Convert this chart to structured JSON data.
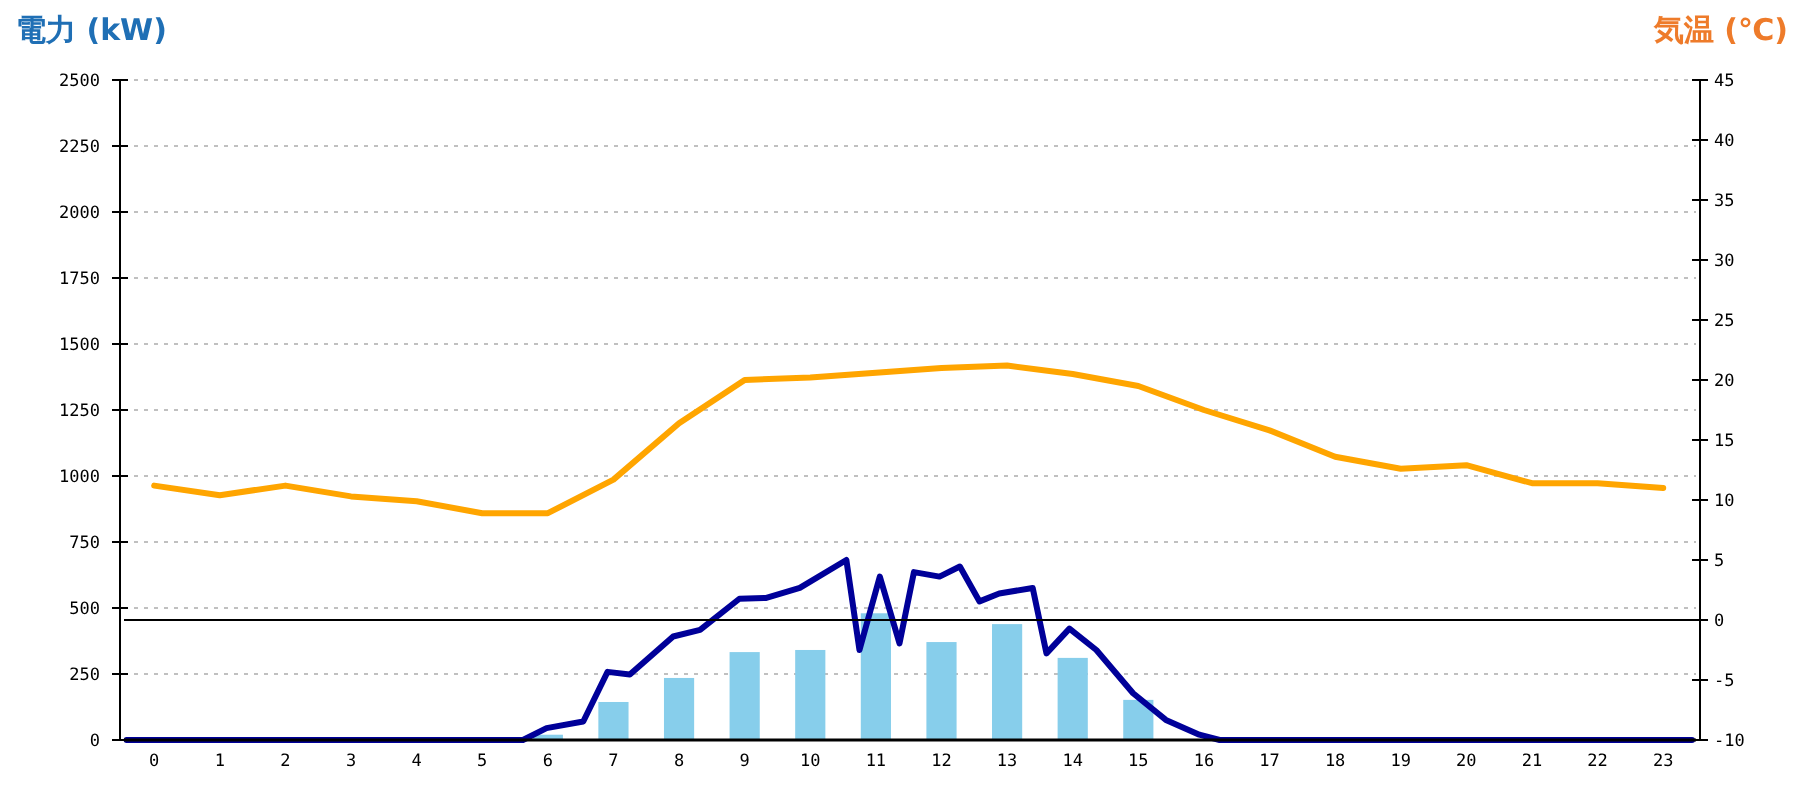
{
  "chart_data": {
    "type": "bar",
    "ylabel": "電力 (kW)",
    "y2label": "気温 (℃)",
    "x": [
      0,
      1,
      2,
      3,
      4,
      5,
      6,
      7,
      8,
      9,
      10,
      11,
      12,
      13,
      14,
      15,
      16,
      17,
      18,
      19,
      20,
      21,
      22,
      23
    ],
    "xlim": [
      -0.46,
      23.5
    ],
    "xticks": [
      0,
      1,
      2,
      3,
      4,
      5,
      6,
      7,
      8,
      9,
      10,
      11,
      12,
      13,
      14,
      15,
      16,
      17,
      18,
      19,
      20,
      21,
      22,
      23
    ],
    "ylim": [
      0,
      2500
    ],
    "yticks": [
      0,
      250,
      500,
      750,
      1000,
      1250,
      1500,
      1750,
      2000,
      2250,
      2500
    ],
    "y2lim": [
      -10,
      45
    ],
    "y2ticks": [
      -10,
      -5,
      0,
      5,
      10,
      15,
      20,
      25,
      30,
      35,
      40,
      45
    ],
    "grid": "y",
    "ref_lines": [
      {
        "axis": "y2",
        "value": 0,
        "color": "#000000"
      }
    ],
    "series": [
      {
        "type": "bar",
        "color": "#87ceeb",
        "values": [
          0,
          0,
          0,
          0,
          0,
          0,
          20,
          144,
          235,
          333,
          341,
          480,
          371,
          439,
          311,
          152,
          null,
          0,
          0,
          0,
          0,
          0,
          0,
          0
        ]
      },
      {
        "type": "line",
        "color": "#000099",
        "x": [
          -0.42,
          5.62,
          5.98,
          6.54,
          6.91,
          7.25,
          7.91,
          8.32,
          8.92,
          9.33,
          9.84,
          10.55,
          10.75,
          11.06,
          11.36,
          11.58,
          11.97,
          12.28,
          12.58,
          12.88,
          13.39,
          13.6,
          13.95,
          14.36,
          14.92,
          15.42,
          15.93,
          16.24,
          23.44
        ],
        "values": [
          0,
          0,
          45,
          70,
          258,
          248,
          392,
          417,
          535,
          538,
          576,
          682,
          341,
          619,
          366,
          636,
          619,
          657,
          525,
          555,
          576,
          328,
          422,
          341,
          177,
          76,
          20,
          0,
          0
        ]
      },
      {
        "type": "line",
        "axis": "y2",
        "color": "#ffa500",
        "values": [
          11.2,
          10.4,
          11.2,
          10.3,
          9.9,
          8.9,
          8.9,
          11.7,
          16.4,
          20.0,
          20.2,
          20.6,
          21.0,
          21.2,
          20.5,
          19.5,
          17.5,
          15.8,
          13.6,
          12.6,
          12.9,
          11.4,
          11.4,
          11.0
        ]
      }
    ]
  }
}
